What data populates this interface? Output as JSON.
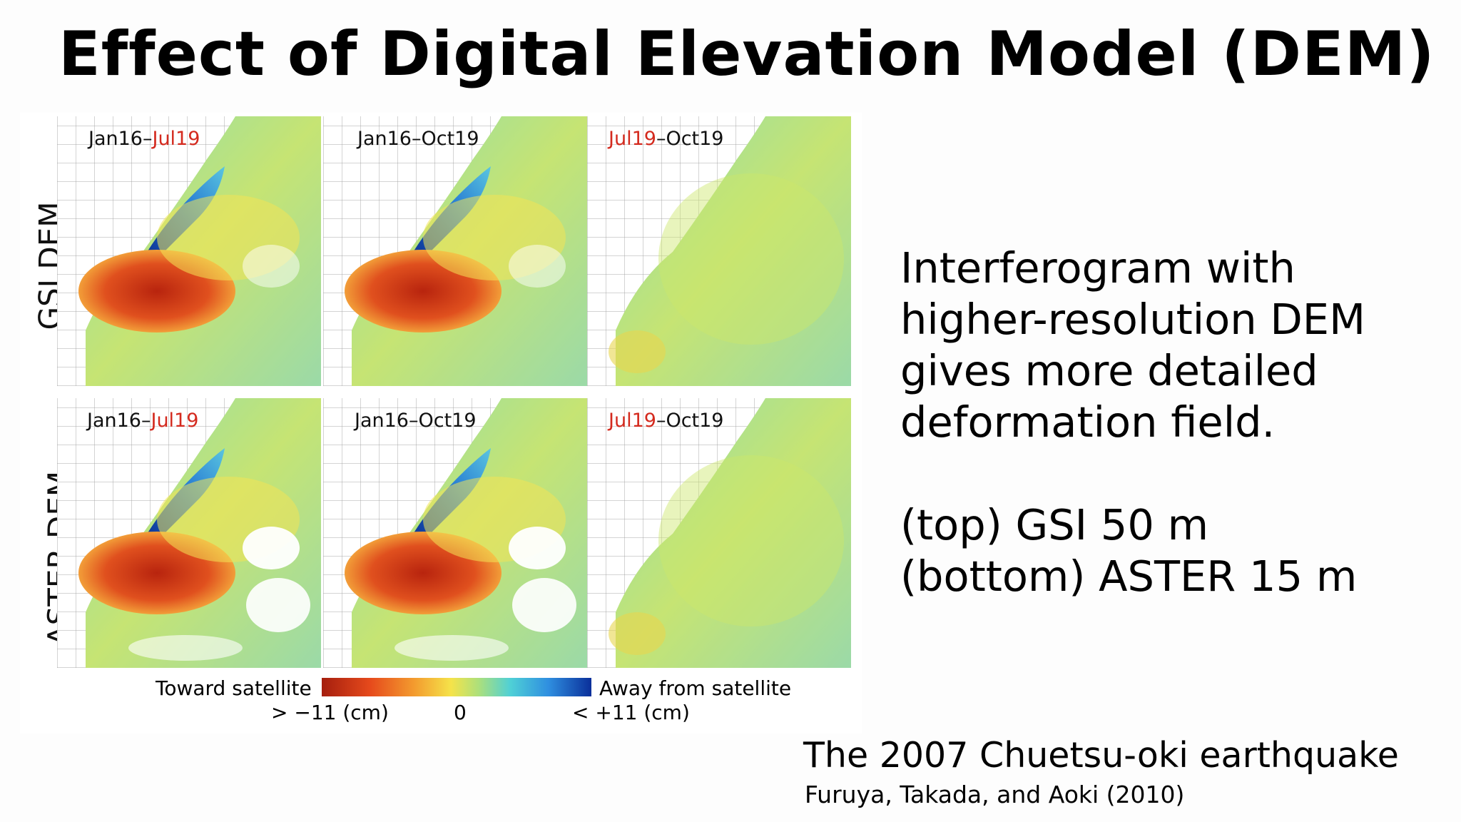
{
  "title": "Effect of Digital Elevation Model (DEM)",
  "figure": {
    "row_labels": [
      "GSI DEM",
      "ASTER DEM"
    ],
    "panels": [
      {
        "start": "Jan16",
        "sep": "–",
        "end": "Jul19",
        "highlight": "end"
      },
      {
        "start": "Jan16",
        "sep": "–",
        "end": "Oct19",
        "highlight": "none"
      },
      {
        "start": "Jul19",
        "sep": "–",
        "end": "Oct19",
        "highlight": "start"
      },
      {
        "start": "Jan16",
        "sep": "–",
        "end": "Jul19",
        "highlight": "end"
      },
      {
        "start": "Jan16",
        "sep": "–",
        "end": "Oct19",
        "highlight": "none"
      },
      {
        "start": "Jul19",
        "sep": "–",
        "end": "Oct19",
        "highlight": "start"
      }
    ],
    "colorbar": {
      "left_label": "Toward satellite",
      "right_label": "Away from satellite",
      "tick_min": "> −11 (cm)",
      "tick_mid": "0",
      "tick_max": "< +11 (cm)"
    },
    "colors": {
      "highlight_red": "#d42a1e"
    }
  },
  "description": {
    "lines": [
      "Interferogram with",
      "higher-resolution DEM",
      "gives more detailed",
      "deformation field."
    ],
    "detail_lines": [
      "(top) GSI 50 m",
      "(bottom) ASTER 15 m"
    ]
  },
  "caption": "The 2007 Chuetsu-oki earthquake",
  "citation": "Furuya, Takada, and Aoki (2010)"
}
